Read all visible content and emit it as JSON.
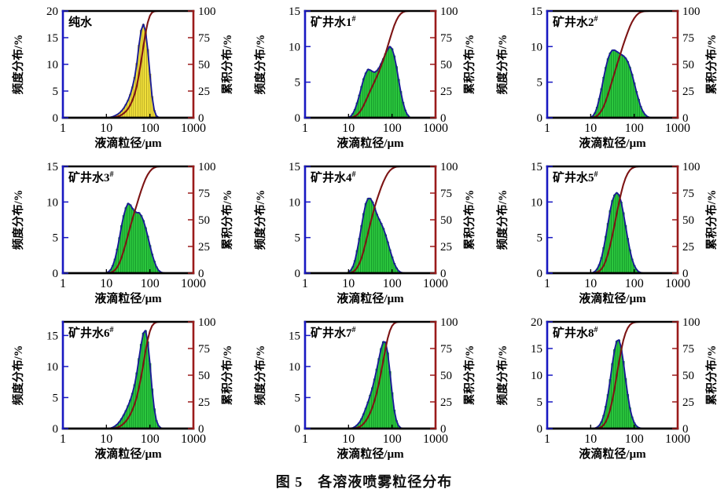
{
  "figure": {
    "caption": "图 5　各溶液喷雾粒径分布"
  },
  "colors": {
    "axis_left": "#1818c2",
    "axis_right": "#9b1b1b",
    "axis_black": "#000000",
    "curve": "#7d1414",
    "envelope": "#1a1a96",
    "tick_label": "#000000"
  },
  "axes_common": {
    "xlabel": "液滴粒径/μm",
    "ylabel_left": "频度分布/%",
    "ylabel_right": "累积分布/%",
    "xscale": "log",
    "xlim": [
      1,
      1000
    ],
    "xticks": [
      "1",
      "10",
      "100",
      "1000"
    ],
    "ylim_right": [
      0,
      100
    ],
    "yticks_right": [
      0,
      25,
      50,
      75,
      100
    ],
    "cumulative_definition": "running sum of frequency normalized to 100%",
    "x_values_um": [
      10,
      11.2,
      12.6,
      14.1,
      15.8,
      17.8,
      20,
      22.4,
      25.1,
      28.2,
      31.6,
      35.5,
      39.8,
      44.7,
      50.1,
      56.2,
      63.1,
      70.8,
      79.4,
      89.1,
      100,
      112,
      126,
      141,
      158,
      178,
      200,
      224,
      251
    ]
  },
  "chart_data": [
    {
      "type": "bar",
      "title": "纯水",
      "title_sup": "",
      "fill": "#f0df3a",
      "bar_line": "#a89a20",
      "ylim_left": [
        0,
        20
      ],
      "yticks_left": [
        0,
        5,
        10,
        15,
        20
      ],
      "frequency": [
        0,
        0,
        0.1,
        0.2,
        0.4,
        0.6,
        0.9,
        1.3,
        1.8,
        2.5,
        3.3,
        4.4,
        5.8,
        7.6,
        10.2,
        13.6,
        16.4,
        17.5,
        16.2,
        12.8,
        8.2,
        4.0,
        1.4,
        0.35,
        0.08,
        0,
        0,
        0,
        0
      ]
    },
    {
      "type": "bar",
      "title": "矿井水1",
      "title_sup": "#",
      "fill": "#2cc63e",
      "bar_line": "#0c8a24",
      "ylim_left": [
        0,
        15
      ],
      "yticks_left": [
        0,
        5,
        10,
        15
      ],
      "frequency": [
        0.05,
        0.2,
        0.6,
        1.2,
        2.1,
        3.2,
        4.4,
        5.5,
        6.3,
        6.8,
        6.7,
        6.5,
        6.4,
        6.6,
        7.0,
        7.6,
        8.3,
        9.0,
        9.6,
        10.0,
        9.7,
        8.7,
        7.2,
        5.4,
        3.7,
        2.2,
        1.1,
        0.45,
        0.12
      ]
    },
    {
      "type": "bar",
      "title": "矿井水2",
      "title_sup": "#",
      "fill": "#2cc63e",
      "bar_line": "#0c8a24",
      "ylim_left": [
        0,
        15
      ],
      "yticks_left": [
        0,
        5,
        10,
        15
      ],
      "frequency": [
        0.05,
        0.25,
        0.7,
        1.5,
        2.7,
        4.1,
        5.7,
        7.1,
        8.3,
        9.1,
        9.5,
        9.5,
        9.3,
        9.1,
        8.9,
        8.7,
        8.4,
        7.9,
        7.1,
        6.1,
        4.9,
        3.7,
        2.6,
        1.6,
        0.9,
        0.45,
        0.18,
        0.06,
        0
      ]
    },
    {
      "type": "bar",
      "title": "矿井水3",
      "title_sup": "#",
      "fill": "#2cc63e",
      "bar_line": "#0c8a24",
      "ylim_left": [
        0,
        15
      ],
      "yticks_left": [
        0,
        5,
        10,
        15
      ],
      "frequency": [
        0.05,
        0.2,
        0.5,
        1.1,
        2.0,
        3.4,
        5.0,
        6.7,
        8.1,
        9.2,
        9.8,
        9.6,
        9.1,
        8.7,
        8.5,
        8.5,
        8.1,
        7.4,
        6.4,
        5.2,
        3.9,
        2.7,
        1.7,
        0.9,
        0.4,
        0.15,
        0.04,
        0,
        0
      ]
    },
    {
      "type": "bar",
      "title": "矿井水4",
      "title_sup": "#",
      "fill": "#2cc63e",
      "bar_line": "#0c8a24",
      "ylim_left": [
        0,
        15
      ],
      "yticks_left": [
        0,
        5,
        10,
        15
      ],
      "frequency": [
        0.15,
        0.4,
        0.9,
        1.8,
        3.2,
        4.9,
        6.7,
        8.4,
        9.8,
        10.5,
        10.5,
        10.0,
        9.2,
        8.3,
        7.6,
        7.0,
        6.3,
        5.4,
        4.4,
        3.3,
        2.3,
        1.4,
        0.75,
        0.33,
        0.12,
        0.03,
        0,
        0,
        0
      ]
    },
    {
      "type": "bar",
      "title": "矿井水5",
      "title_sup": "#",
      "fill": "#2cc63e",
      "bar_line": "#0c8a24",
      "ylim_left": [
        0,
        15
      ],
      "yticks_left": [
        0,
        5,
        10,
        15
      ],
      "frequency": [
        0.02,
        0.08,
        0.25,
        0.6,
        1.2,
        2.2,
        3.6,
        5.2,
        7.0,
        8.8,
        10.2,
        11.0,
        11.3,
        11.0,
        10.0,
        8.5,
        6.7,
        4.9,
        3.3,
        2.0,
        1.1,
        0.55,
        0.22,
        0.08,
        0.02,
        0,
        0,
        0,
        0
      ]
    },
    {
      "type": "bar",
      "title": "矿井水6",
      "title_sup": "#",
      "fill": "#2cc63e",
      "bar_line": "#0c8a24",
      "ylim_left": [
        0,
        17.2
      ],
      "yticks_left": [
        0,
        5,
        10,
        15
      ],
      "frequency": [
        0,
        0,
        0.08,
        0.2,
        0.4,
        0.7,
        1.1,
        1.6,
        2.2,
        2.9,
        3.7,
        4.6,
        5.7,
        7.1,
        9.0,
        11.3,
        13.6,
        15.4,
        15.8,
        14.0,
        10.5,
        6.4,
        3.2,
        1.3,
        0.45,
        0.12,
        0,
        0,
        0
      ]
    },
    {
      "type": "bar",
      "title": "矿井水7",
      "title_sup": "#",
      "fill": "#2cc63e",
      "bar_line": "#0c8a24",
      "ylim_left": [
        0,
        17.2
      ],
      "yticks_left": [
        0,
        5,
        10,
        15
      ],
      "frequency": [
        0,
        0.04,
        0.12,
        0.3,
        0.6,
        1.0,
        1.6,
        2.4,
        3.3,
        4.3,
        5.4,
        6.6,
        8.0,
        9.6,
        11.3,
        12.9,
        14.0,
        13.9,
        12.2,
        9.2,
        5.8,
        3.0,
        1.3,
        0.45,
        0.12,
        0,
        0,
        0,
        0
      ]
    },
    {
      "type": "bar",
      "title": "矿井水8",
      "title_sup": "#",
      "fill": "#2cc63e",
      "bar_line": "#0c8a24",
      "ylim_left": [
        0,
        20
      ],
      "yticks_left": [
        0,
        5,
        10,
        15,
        20
      ],
      "frequency": [
        0,
        0,
        0.08,
        0.25,
        0.6,
        1.3,
        2.5,
        4.2,
        6.4,
        9.2,
        12.2,
        14.8,
        16.4,
        16.6,
        15.2,
        12.6,
        9.4,
        6.4,
        3.9,
        2.2,
        1.1,
        0.5,
        0.2,
        0.07,
        0,
        0,
        0,
        0,
        0
      ]
    }
  ]
}
